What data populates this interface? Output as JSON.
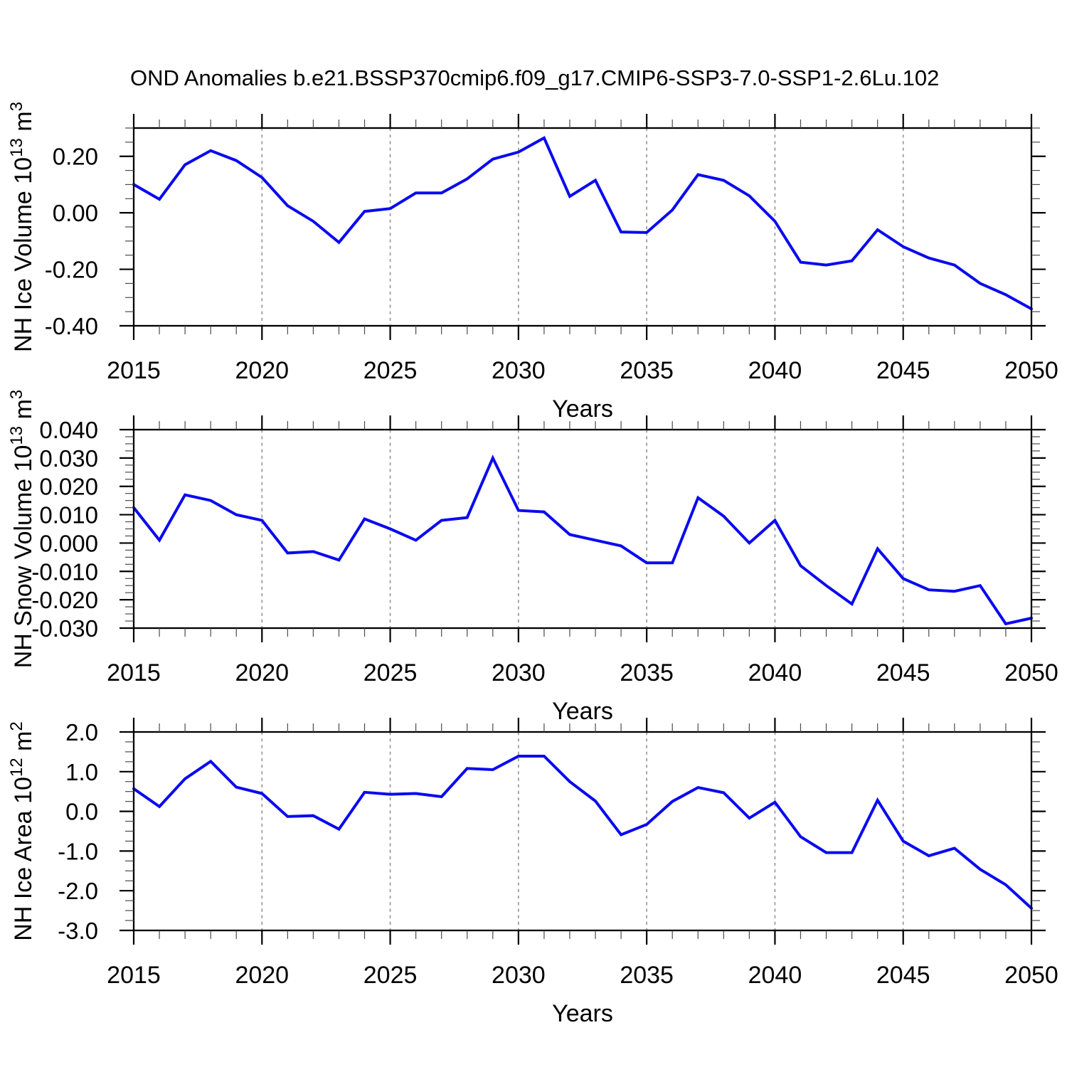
{
  "title": "OND Anomalies b.e21.BSSP370cmip6.f09_g17.CMIP6-SSP3-7.0-SSP1-2.6Lu.102",
  "colors": {
    "line": "#0a0af0",
    "grid": "#999999",
    "frame": "#000000"
  },
  "chart_data": [
    {
      "type": "line",
      "id": "nh-ice-volume",
      "ylabel": "NH Ice Volume 10^13 m^3",
      "ylabel_parts": [
        {
          "text": "NH Ice Volume 10",
          "sup": false
        },
        {
          "text": "13",
          "sup": true
        },
        {
          "text": " m",
          "sup": false
        },
        {
          "text": "3",
          "sup": true
        }
      ],
      "xlabel": "Years",
      "ylim": [
        -0.4,
        0.3
      ],
      "xlim": [
        2015,
        2050
      ],
      "grid_years": [
        2020,
        2025,
        2030,
        2035,
        2040,
        2045
      ],
      "yticks": {
        "labels": [
          "0.20",
          "0.00",
          "-0.20",
          "-0.40"
        ],
        "values": [
          0.2,
          0.0,
          -0.2,
          -0.4
        ]
      },
      "ytick_minor_step": 0.05,
      "xticks": {
        "labels": [
          "2015",
          "2020",
          "2025",
          "2030",
          "2035",
          "2040",
          "2045",
          "2050"
        ],
        "values": [
          2015,
          2020,
          2025,
          2030,
          2035,
          2040,
          2045,
          2050
        ],
        "minor_step": 1
      },
      "x": [
        2015,
        2016,
        2017,
        2018,
        2019,
        2020,
        2021,
        2022,
        2023,
        2024,
        2025,
        2026,
        2027,
        2028,
        2029,
        2030,
        2031,
        2032,
        2033,
        2034,
        2035,
        2036,
        2037,
        2038,
        2039,
        2040,
        2041,
        2042,
        2043,
        2044,
        2045,
        2046,
        2047,
        2048,
        2049,
        2050
      ],
      "values": [
        0.1,
        0.048,
        0.17,
        0.22,
        0.185,
        0.125,
        0.025,
        -0.03,
        -0.105,
        0.005,
        0.015,
        0.07,
        0.07,
        0.12,
        0.19,
        0.215,
        0.265,
        0.058,
        0.115,
        -0.068,
        -0.07,
        0.01,
        0.135,
        0.115,
        0.06,
        -0.03,
        -0.175,
        -0.185,
        -0.17,
        -0.06,
        -0.12,
        -0.16,
        -0.185,
        -0.25,
        -0.29,
        -0.34
      ]
    },
    {
      "type": "line",
      "id": "nh-snow-volume",
      "ylabel": "NH Snow Volume 10^13 m^3",
      "ylabel_parts": [
        {
          "text": "NH Snow Volume 10",
          "sup": false
        },
        {
          "text": "13",
          "sup": true
        },
        {
          "text": " m",
          "sup": false
        },
        {
          "text": "3",
          "sup": true
        }
      ],
      "xlabel": "Years",
      "ylim": [
        -0.03,
        0.04
      ],
      "xlim": [
        2015,
        2050
      ],
      "grid_years": [
        2020,
        2025,
        2030,
        2035,
        2040,
        2045
      ],
      "yticks": {
        "labels": [
          "0.040",
          "0.030",
          "0.020",
          "0.010",
          "0.000",
          "-0.010",
          "-0.020",
          "-0.030"
        ],
        "values": [
          0.04,
          0.03,
          0.02,
          0.01,
          0.0,
          -0.01,
          -0.02,
          -0.03
        ]
      },
      "ytick_minor_step": 0.0025,
      "xticks": {
        "labels": [
          "2015",
          "2020",
          "2025",
          "2030",
          "2035",
          "2040",
          "2045",
          "2050"
        ],
        "values": [
          2015,
          2020,
          2025,
          2030,
          2035,
          2040,
          2045,
          2050
        ],
        "minor_step": 1
      },
      "x": [
        2015,
        2016,
        2017,
        2018,
        2019,
        2020,
        2021,
        2022,
        2023,
        2024,
        2025,
        2026,
        2027,
        2028,
        2029,
        2030,
        2031,
        2032,
        2033,
        2034,
        2035,
        2036,
        2037,
        2038,
        2039,
        2040,
        2041,
        2042,
        2043,
        2044,
        2045,
        2046,
        2047,
        2048,
        2049,
        2050
      ],
      "values": [
        0.0125,
        0.001,
        0.017,
        0.015,
        0.01,
        0.008,
        -0.0035,
        -0.003,
        -0.006,
        0.0085,
        0.005,
        0.001,
        0.008,
        0.009,
        0.03,
        0.0115,
        0.011,
        0.003,
        0.001,
        -0.001,
        -0.007,
        -0.007,
        0.016,
        0.0095,
        0.0,
        0.008,
        -0.008,
        -0.015,
        -0.0215,
        -0.002,
        -0.0125,
        -0.0165,
        -0.017,
        -0.015,
        -0.0285,
        -0.0265
      ]
    },
    {
      "type": "line",
      "id": "nh-ice-area",
      "ylabel": "NH Ice Area 10^12 m^2",
      "ylabel_parts": [
        {
          "text": "NH Ice Area 10",
          "sup": false
        },
        {
          "text": "12",
          "sup": true
        },
        {
          "text": " m",
          "sup": false
        },
        {
          "text": "2",
          "sup": true
        }
      ],
      "xlabel": "Years",
      "ylim": [
        -3.0,
        2.0
      ],
      "xlim": [
        2015,
        2050
      ],
      "grid_years": [
        2020,
        2025,
        2030,
        2035,
        2040,
        2045
      ],
      "yticks": {
        "labels": [
          "2.0",
          "1.0",
          "0.0",
          "-1.0",
          "-2.0",
          "-3.0"
        ],
        "values": [
          2.0,
          1.0,
          0.0,
          -1.0,
          -2.0,
          -3.0
        ]
      },
      "ytick_minor_step": 0.25,
      "xticks": {
        "labels": [
          "2015",
          "2020",
          "2025",
          "2030",
          "2035",
          "2040",
          "2045",
          "2050"
        ],
        "values": [
          2015,
          2020,
          2025,
          2030,
          2035,
          2040,
          2045,
          2050
        ],
        "minor_step": 1
      },
      "x": [
        2015,
        2016,
        2017,
        2018,
        2019,
        2020,
        2021,
        2022,
        2023,
        2024,
        2025,
        2026,
        2027,
        2028,
        2029,
        2030,
        2031,
        2032,
        2033,
        2034,
        2035,
        2036,
        2037,
        2038,
        2039,
        2040,
        2041,
        2042,
        2043,
        2044,
        2045,
        2046,
        2047,
        2048,
        2049,
        2050
      ],
      "values": [
        0.57,
        0.12,
        0.82,
        1.26,
        0.61,
        0.45,
        -0.13,
        -0.11,
        -0.45,
        0.48,
        0.43,
        0.45,
        0.37,
        1.08,
        1.05,
        1.39,
        1.39,
        0.75,
        0.26,
        -0.59,
        -0.33,
        0.25,
        0.6,
        0.47,
        -0.17,
        0.23,
        -0.64,
        -1.04,
        -1.04,
        0.28,
        -0.75,
        -1.12,
        -0.93,
        -1.46,
        -1.85,
        -2.44
      ]
    }
  ]
}
